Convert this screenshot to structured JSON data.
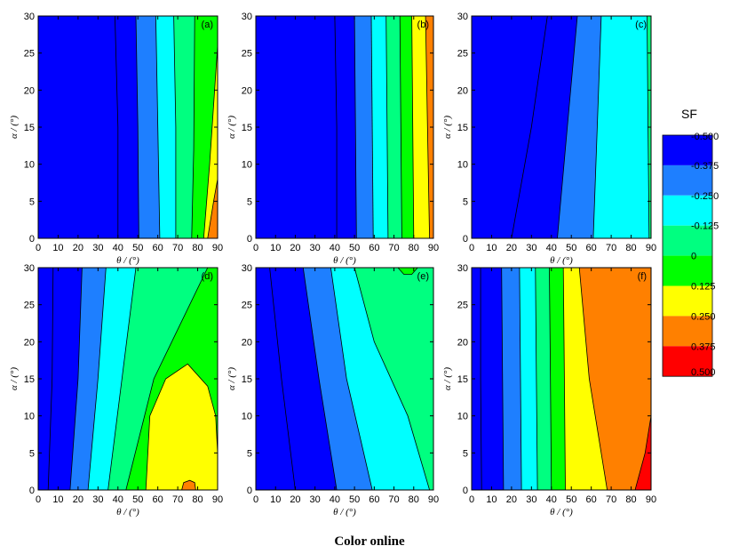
{
  "caption": "Color online",
  "colorbar": {
    "title": "SF",
    "labels": [
      "-0.500",
      "-0.375",
      "-0.250",
      "-0.125",
      "0",
      "0.125",
      "0.250",
      "0.375",
      "0.500"
    ],
    "colors": [
      "#0000ff",
      "#1e7fff",
      "#00ffff",
      "#00ff80",
      "#00ff00",
      "#ffff00",
      "#ff8000",
      "#ff0000"
    ]
  },
  "chart_data": [
    {
      "type": "heatmap",
      "panel": "(a)",
      "xlabel": "θ / (°)",
      "ylabel": "α / (°)",
      "xlim": [
        0,
        90
      ],
      "ylim": [
        0,
        30
      ],
      "x_ticks": [
        "0",
        "10",
        "20",
        "30",
        "40",
        "50",
        "60",
        "70",
        "80",
        "90"
      ],
      "y_ticks": [
        "0",
        "5",
        "10",
        "15",
        "20",
        "25",
        "30"
      ],
      "boundaries": [
        {
          "from": -0.5,
          "to": -0.375,
          "points": [
            [
              40,
              0
            ],
            [
              40,
              15
            ],
            [
              38.5,
              30
            ]
          ]
        },
        {
          "from": -0.375,
          "to": -0.25,
          "points": [
            [
              50.5,
              0
            ],
            [
              50,
              15
            ],
            [
              49,
              30
            ]
          ]
        },
        {
          "from": -0.25,
          "to": -0.125,
          "points": [
            [
              61,
              0
            ],
            [
              60,
              15
            ],
            [
              59,
              30
            ]
          ]
        },
        {
          "from": -0.125,
          "to": 0,
          "points": [
            [
              69,
              0
            ],
            [
              69,
              15
            ],
            [
              68,
              30
            ]
          ]
        },
        {
          "from": 0,
          "to": 0.125,
          "points": [
            [
              77,
              0
            ],
            [
              78,
              12
            ],
            [
              78.5,
              30
            ]
          ]
        },
        {
          "from": 0.125,
          "to": 0.25,
          "points": [
            [
              83,
              0
            ],
            [
              86,
              10
            ],
            [
              90,
              26
            ]
          ]
        },
        {
          "from": 0.25,
          "to": 0.375,
          "points": [
            [
              85,
              0
            ],
            [
              88,
              5
            ],
            [
              90,
              8
            ]
          ]
        }
      ]
    },
    {
      "type": "heatmap",
      "panel": "(b)",
      "xlabel": "θ / (°)",
      "ylabel": "α / (°)",
      "xlim": [
        0,
        90
      ],
      "ylim": [
        0,
        30
      ],
      "x_ticks": [
        "0",
        "10",
        "20",
        "30",
        "40",
        "50",
        "60",
        "70",
        "80",
        "90"
      ],
      "y_ticks": [
        "0",
        "5",
        "10",
        "15",
        "20",
        "25",
        "30"
      ],
      "boundaries": [
        {
          "from": -0.5,
          "to": -0.375,
          "points": [
            [
              41,
              0
            ],
            [
              41,
              15
            ],
            [
              40,
              30
            ]
          ]
        },
        {
          "from": -0.375,
          "to": -0.25,
          "points": [
            [
              51,
              0
            ],
            [
              50.5,
              15
            ],
            [
              50,
              30
            ]
          ]
        },
        {
          "from": -0.25,
          "to": -0.125,
          "points": [
            [
              59.5,
              0
            ],
            [
              59,
              15
            ],
            [
              58.5,
              30
            ]
          ]
        },
        {
          "from": -0.125,
          "to": 0,
          "points": [
            [
              67,
              0
            ],
            [
              66.5,
              15
            ],
            [
              66,
              30
            ]
          ]
        },
        {
          "from": 0,
          "to": 0.125,
          "points": [
            [
              74,
              0
            ],
            [
              73.5,
              15
            ],
            [
              73,
              30
            ]
          ]
        },
        {
          "from": 0.125,
          "to": 0.25,
          "points": [
            [
              80,
              0
            ],
            [
              79.5,
              15
            ],
            [
              79,
              30
            ]
          ]
        },
        {
          "from": 0.25,
          "to": 0.375,
          "points": [
            [
              88,
              0
            ],
            [
              87,
              15
            ],
            [
              86,
              30
            ]
          ]
        }
      ]
    },
    {
      "type": "heatmap",
      "panel": "(c)",
      "xlabel": "θ / (°)",
      "ylabel": "α / (°)",
      "xlim": [
        0,
        90
      ],
      "ylim": [
        0,
        30
      ],
      "x_ticks": [
        "0",
        "10",
        "20",
        "30",
        "40",
        "50",
        "60",
        "70",
        "80",
        "90"
      ],
      "y_ticks": [
        "0",
        "5",
        "10",
        "15",
        "20",
        "25",
        "30"
      ],
      "boundaries": [
        {
          "from": -0.5,
          "to": -0.375,
          "points": [
            [
              20,
              0
            ],
            [
              30,
              15
            ],
            [
              38,
              30
            ]
          ]
        },
        {
          "from": -0.375,
          "to": -0.25,
          "points": [
            [
              43,
              0
            ],
            [
              48,
              15
            ],
            [
              53,
              30
            ]
          ]
        },
        {
          "from": -0.25,
          "to": -0.125,
          "points": [
            [
              61,
              0
            ],
            [
              63,
              15
            ],
            [
              65,
              30
            ]
          ]
        },
        {
          "from": -0.125,
          "to": 0,
          "points": [
            [
              89,
              0
            ],
            [
              88.5,
              15
            ],
            [
              88,
              30
            ]
          ]
        }
      ]
    },
    {
      "type": "heatmap",
      "panel": "(d)",
      "xlabel": "θ / (°)",
      "ylabel": "α / (°)",
      "xlim": [
        0,
        90
      ],
      "ylim": [
        0,
        30
      ],
      "x_ticks": [
        "0",
        "10",
        "20",
        "30",
        "40",
        "50",
        "60",
        "70",
        "80",
        "90"
      ],
      "y_ticks": [
        "0",
        "5",
        "10",
        "15",
        "20",
        "25",
        "30"
      ],
      "boundaries": [
        {
          "from": -0.5,
          "to": -0.375,
          "points": [
            [
              5,
              0
            ],
            [
              7,
              15
            ],
            [
              7.5,
              30
            ]
          ]
        },
        {
          "from": -0.375,
          "to": -0.25,
          "points": [
            [
              16,
              0
            ],
            [
              20,
              15
            ],
            [
              22,
              30
            ]
          ]
        },
        {
          "from": -0.25,
          "to": -0.125,
          "points": [
            [
              25,
              0
            ],
            [
              30,
              15
            ],
            [
              34,
              30
            ]
          ]
        },
        {
          "from": -0.125,
          "to": 0,
          "points": [
            [
              35,
              0
            ],
            [
              42,
              15
            ],
            [
              49,
              30
            ]
          ]
        },
        {
          "from": 0,
          "to": 0.125,
          "points": [
            [
              44,
              0
            ],
            [
              58,
              15
            ],
            [
              85,
              30
            ]
          ]
        },
        {
          "from": 0.125,
          "to": 0.25,
          "points": [
            [
              54,
              0
            ],
            [
              56,
              10
            ],
            [
              64,
              15
            ],
            [
              75,
              17
            ],
            [
              85,
              14
            ],
            [
              89,
              10
            ],
            [
              90,
              5
            ]
          ]
        },
        {
          "from": 0.25,
          "to": 0.375,
          "points": [
            [
              72,
              0
            ],
            [
              73,
              1
            ],
            [
              76,
              1.3
            ],
            [
              78.5,
              1
            ],
            [
              79,
              0
            ]
          ]
        }
      ]
    },
    {
      "type": "heatmap",
      "panel": "(e)",
      "xlabel": "θ / (°)",
      "ylabel": "α / (°)",
      "xlim": [
        0,
        90
      ],
      "ylim": [
        0,
        30
      ],
      "x_ticks": [
        "0",
        "10",
        "20",
        "30",
        "40",
        "50",
        "60",
        "70",
        "80",
        "90"
      ],
      "y_ticks": [
        "0",
        "5",
        "10",
        "15",
        "20",
        "25",
        "30"
      ],
      "boundaries": [
        {
          "from": -0.5,
          "to": -0.375,
          "points": [
            [
              20,
              0
            ],
            [
              13,
              15
            ],
            [
              7,
              30
            ]
          ]
        },
        {
          "from": -0.375,
          "to": -0.25,
          "points": [
            [
              41,
              0
            ],
            [
              32,
              15
            ],
            [
              24,
              30
            ]
          ]
        },
        {
          "from": -0.25,
          "to": -0.125,
          "points": [
            [
              59,
              0
            ],
            [
              46,
              15
            ],
            [
              38,
              30
            ]
          ]
        },
        {
          "from": -0.125,
          "to": 0,
          "points": [
            [
              88,
              0
            ],
            [
              77,
              10
            ],
            [
              60,
              20
            ],
            [
              50,
              30
            ]
          ]
        },
        {
          "from": 0,
          "to": 0.125,
          "points": [
            [
              72,
              30
            ],
            [
              75,
              29.1
            ],
            [
              79,
              29.1
            ],
            [
              82,
              30
            ]
          ]
        }
      ]
    },
    {
      "type": "heatmap",
      "panel": "(f)",
      "xlabel": "θ / (°)",
      "ylabel": "α / (°)",
      "xlim": [
        0,
        90
      ],
      "ylim": [
        0,
        30
      ],
      "x_ticks": [
        "0",
        "10",
        "20",
        "30",
        "40",
        "50",
        "60",
        "70",
        "80",
        "90"
      ],
      "y_ticks": [
        "0",
        "5",
        "10",
        "15",
        "20",
        "25",
        "30"
      ],
      "boundaries": [
        {
          "from": -0.5,
          "to": -0.375,
          "points": [
            [
              5,
              0
            ],
            [
              4.5,
              15
            ],
            [
              4.5,
              30
            ]
          ]
        },
        {
          "from": -0.375,
          "to": -0.25,
          "points": [
            [
              16,
              0
            ],
            [
              15.5,
              15
            ],
            [
              15,
              30
            ]
          ]
        },
        {
          "from": -0.25,
          "to": -0.125,
          "points": [
            [
              25,
              0
            ],
            [
              24.5,
              15
            ],
            [
              24,
              30
            ]
          ]
        },
        {
          "from": -0.125,
          "to": 0,
          "points": [
            [
              33,
              0
            ],
            [
              32.5,
              15
            ],
            [
              32,
              30
            ]
          ]
        },
        {
          "from": 0,
          "to": 0.125,
          "points": [
            [
              40,
              0
            ],
            [
              39.5,
              15
            ],
            [
              39,
              30
            ]
          ]
        },
        {
          "from": 0.125,
          "to": 0.25,
          "points": [
            [
              47,
              0
            ],
            [
              46.5,
              15
            ],
            [
              46,
              30
            ]
          ]
        },
        {
          "from": 0.25,
          "to": 0.375,
          "points": [
            [
              68,
              0
            ],
            [
              59,
              15
            ],
            [
              54,
              30
            ]
          ]
        },
        {
          "from": 0.375,
          "to": 0.5,
          "points": [
            [
              82,
              0
            ],
            [
              87,
              5
            ],
            [
              90,
              10
            ]
          ]
        }
      ]
    }
  ]
}
